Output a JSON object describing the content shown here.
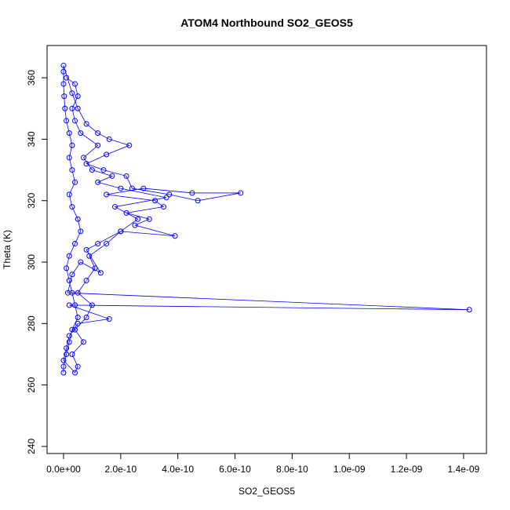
{
  "chart_data": {
    "type": "line",
    "title": "ATOM4 Northbound SO2_GEOS5",
    "x_label": "SO2_GEOS5",
    "y_label": "Theta (K)",
    "color": "#0000ff",
    "markers": true,
    "x": [
      0,
      0,
      1e-11,
      2e-11,
      3e-11,
      5e-11,
      4e-11,
      3e-11,
      2e-11,
      1e-11,
      2e-11,
      4e-11,
      6e-11,
      5e-11,
      3e-11,
      2e-11,
      4e-11,
      3e-11,
      2e-11,
      3e-11,
      2e-11,
      1e-11,
      5e-12,
      2e-12,
      0,
      0,
      0,
      3e-11,
      5e-11,
      8e-11,
      1.2e-10,
      1.6e-10,
      2.3e-10,
      1.5e-10,
      8e-11,
      1.4e-10,
      2.2e-10,
      2.4e-10,
      3.7e-10,
      4.7e-10,
      6.2e-10,
      4.5e-10,
      2.8e-10,
      1.5e-10,
      3.2e-10,
      3.5e-10,
      2.2e-10,
      3e-10,
      2.5e-10,
      3.9e-10,
      2e-10,
      1.2e-10,
      8e-11,
      1.3e-10,
      6e-11,
      3e-11,
      1.5e-11,
      1.42e-09,
      2e-11,
      1.6e-10,
      5e-11,
      2e-11,
      1e-11,
      0,
      4e-11,
      5e-11,
      3e-11,
      7e-11,
      4e-11,
      8e-11,
      1e-10,
      5e-11,
      8e-11,
      1.1e-10,
      9e-11,
      1.5e-10,
      2e-10,
      2.6e-10,
      1.8e-10,
      3.6e-10,
      2e-10,
      1.2e-10,
      1.7e-10,
      1e-10,
      7e-11,
      1.2e-10,
      6e-11,
      4e-11,
      3e-11,
      5e-11,
      4e-11,
      1e-11
    ],
    "values": [
      264,
      266,
      270,
      274,
      278,
      282,
      286,
      290,
      294,
      298,
      302,
      306,
      310,
      314,
      318,
      322,
      326,
      330,
      334,
      338,
      342,
      346,
      350,
      354,
      358,
      362,
      364,
      355,
      350,
      345,
      342,
      340,
      338,
      335,
      332,
      330,
      328,
      324,
      322,
      320,
      322.5,
      322.5,
      324,
      322,
      320,
      318,
      316,
      314,
      312,
      308.5,
      310,
      306,
      304,
      296.5,
      300,
      296,
      290,
      284.5,
      286,
      281.5,
      280,
      276,
      272,
      268,
      264,
      266,
      270,
      274,
      278,
      282,
      286,
      290,
      294,
      298,
      302,
      306,
      310,
      314,
      318,
      321,
      324,
      326,
      328,
      330,
      334,
      338,
      342,
      346,
      350,
      354,
      358,
      360
    ],
    "xlim": [
      -5.76e-11,
      1.48e-09
    ],
    "ylim": [
      237.7,
      370.5
    ],
    "xticks": [
      {
        "value": 0,
        "label": "0.0e+00"
      },
      {
        "value": 2e-10,
        "label": "2.0e-10"
      },
      {
        "value": 4e-10,
        "label": "4.0e-10"
      },
      {
        "value": 6e-10,
        "label": "6.0e-10"
      },
      {
        "value": 8e-10,
        "label": "8.0e-10"
      },
      {
        "value": 1e-09,
        "label": "1.0e-09"
      },
      {
        "value": 1.2e-09,
        "label": "1.2e-09"
      },
      {
        "value": 1.4e-09,
        "label": "1.4e-09"
      }
    ],
    "yticks": [
      240,
      260,
      280,
      300,
      320,
      340,
      360
    ]
  }
}
